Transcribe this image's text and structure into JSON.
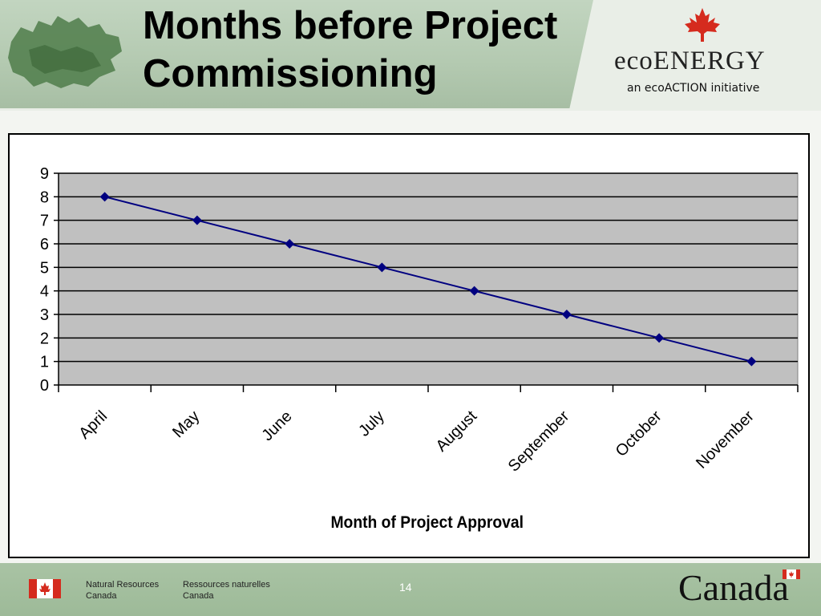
{
  "slide": {
    "title": "Months before Project Commissioning",
    "page_number": "14"
  },
  "branding": {
    "program": "ecoENERGY",
    "program_tagline": "an ecoACTION initiative",
    "dept_en_line1": "Natural Resources",
    "dept_en_line2": "Canada",
    "dept_fr_line1": "Ressources naturelles",
    "dept_fr_line2": "Canada",
    "wordmark": "Canada"
  },
  "colors": {
    "series": "#000080",
    "plot_area": "#c0c0c0",
    "gridline": "#000000",
    "flag_red": "#d52b1e"
  },
  "chart_data": {
    "type": "line",
    "title": "",
    "xlabel": "Month of Project Approval",
    "ylabel": "",
    "categories": [
      "April",
      "May",
      "June",
      "July",
      "August",
      "September",
      "October",
      "November"
    ],
    "series": [
      {
        "values": [
          8,
          7,
          6,
          5,
          4,
          3,
          2,
          1
        ],
        "marker": "diamond"
      }
    ],
    "ylim": [
      0,
      9
    ],
    "yticks": [
      0,
      1,
      2,
      3,
      4,
      5,
      6,
      7,
      8,
      9
    ],
    "grid": true,
    "legend": "none"
  }
}
